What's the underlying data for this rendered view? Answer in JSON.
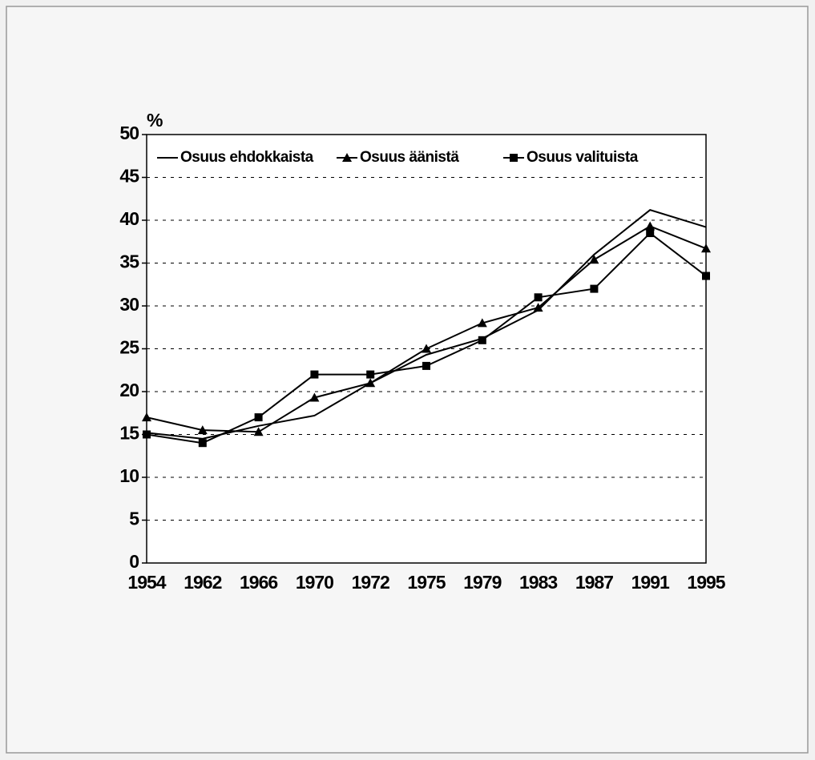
{
  "chart_data": {
    "type": "line",
    "y_label": "%",
    "categories": [
      "1954",
      "1962",
      "1966",
      "1970",
      "1972",
      "1975",
      "1979",
      "1983",
      "1987",
      "1991",
      "1995"
    ],
    "series": [
      {
        "name": "Osuus ehdokkaista",
        "color": "#000000",
        "marker": "none",
        "values": [
          15.2,
          14.5,
          16,
          17.2,
          21,
          24.3,
          26.2,
          29.5,
          36,
          41.2,
          39.2
        ]
      },
      {
        "name": "Osuus äänistä",
        "color": "#000000",
        "marker": "triangle",
        "values": [
          17,
          15.5,
          15.3,
          19.3,
          21,
          25,
          28,
          29.8,
          35.4,
          39.3,
          36.7
        ]
      },
      {
        "name": "Osuus valituista",
        "color": "#000000",
        "marker": "square",
        "values": [
          15,
          14,
          17,
          22,
          22,
          23,
          26,
          31,
          32,
          38.5,
          33.5
        ]
      }
    ],
    "ylim": [
      0,
      50
    ],
    "yticks": [
      0,
      5,
      10,
      15,
      20,
      25,
      30,
      35,
      40,
      45,
      50
    ],
    "grid": true
  }
}
